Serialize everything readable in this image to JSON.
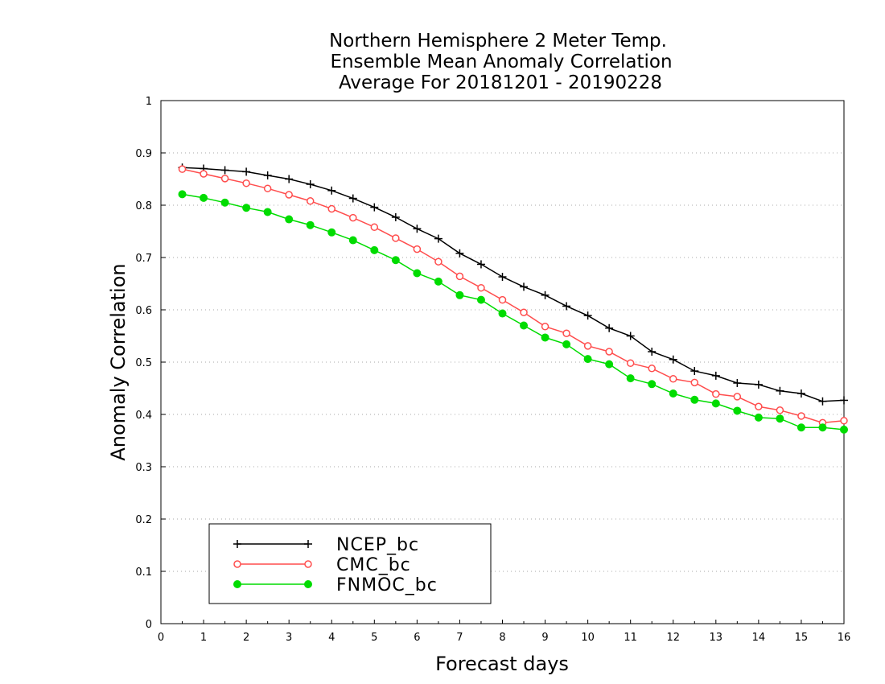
{
  "chart_data": {
    "type": "line",
    "title_lines": [
      "Northern Hemisphere 2 Meter Temp.",
      "Ensemble Mean Anomaly Correlation",
      "Average For 20181201 - 20190228"
    ],
    "xlabel": "Forecast days",
    "ylabel": "Anomaly Correlation",
    "xlim": [
      0,
      16
    ],
    "ylim": [
      0,
      1
    ],
    "x_ticks": [
      "0",
      "1",
      "2",
      "3",
      "4",
      "5",
      "6",
      "7",
      "8",
      "9",
      "10",
      "11",
      "12",
      "13",
      "14",
      "15",
      "16"
    ],
    "y_ticks": [
      "0",
      "0.1",
      "0.2",
      "0.3",
      "0.4",
      "0.5",
      "0.6",
      "0.7",
      "0.8",
      "0.9",
      "1"
    ],
    "grid": "horizontal dotted",
    "legend_placement": "lower-left",
    "x": [
      0.5,
      1,
      1.5,
      2,
      2.5,
      3,
      3.5,
      4,
      4.5,
      5,
      5.5,
      6,
      6.5,
      7,
      7.5,
      8,
      8.5,
      9,
      9.5,
      10,
      10.5,
      11,
      11.5,
      12,
      12.5,
      13,
      13.5,
      14,
      14.5,
      15,
      15.5,
      16
    ],
    "series": [
      {
        "name": "NCEP_bc",
        "color": "#000000",
        "marker": "plus",
        "values": [
          0.872,
          0.87,
          0.867,
          0.864,
          0.857,
          0.85,
          0.84,
          0.828,
          0.813,
          0.796,
          0.777,
          0.755,
          0.736,
          0.708,
          0.687,
          0.663,
          0.644,
          0.628,
          0.607,
          0.589,
          0.565,
          0.55,
          0.52,
          0.505,
          0.483,
          0.474,
          0.46,
          0.457,
          0.445,
          0.44,
          0.425,
          0.427
        ]
      },
      {
        "name": "CMC_bc",
        "color": "#ff4d4d",
        "marker": "open-circle",
        "values": [
          0.869,
          0.86,
          0.851,
          0.842,
          0.832,
          0.82,
          0.808,
          0.793,
          0.776,
          0.758,
          0.737,
          0.716,
          0.692,
          0.664,
          0.642,
          0.619,
          0.595,
          0.568,
          0.555,
          0.531,
          0.52,
          0.498,
          0.488,
          0.468,
          0.461,
          0.439,
          0.434,
          0.415,
          0.408,
          0.397,
          0.384,
          0.388
        ]
      },
      {
        "name": "FNMOC_bc",
        "color": "#00dc00",
        "marker": "filled-circle",
        "values": [
          0.821,
          0.814,
          0.805,
          0.795,
          0.787,
          0.773,
          0.762,
          0.748,
          0.733,
          0.714,
          0.695,
          0.67,
          0.654,
          0.628,
          0.619,
          0.593,
          0.57,
          0.547,
          0.534,
          0.506,
          0.496,
          0.469,
          0.458,
          0.44,
          0.428,
          0.421,
          0.407,
          0.394,
          0.392,
          0.375,
          0.375,
          0.371
        ]
      }
    ]
  }
}
